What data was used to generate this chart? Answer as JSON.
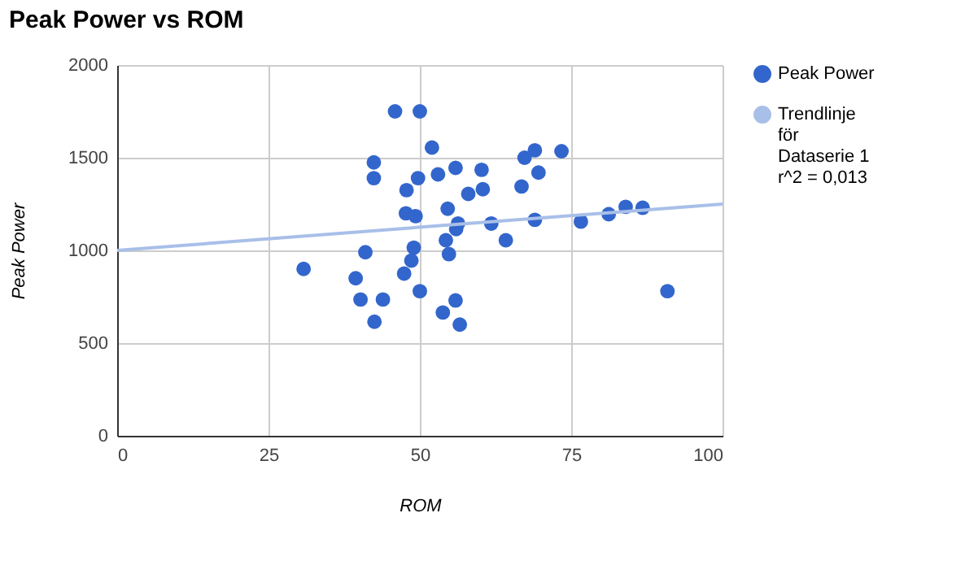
{
  "chart_data": {
    "type": "scatter",
    "title": "Peak Power vs ROM",
    "xlabel": "ROM",
    "ylabel": "Peak Power",
    "xlim": [
      0,
      100
    ],
    "xticks": [
      0,
      25,
      50,
      75,
      100
    ],
    "ylim": [
      0,
      2000
    ],
    "yticks": [
      0,
      500,
      1000,
      1500,
      2000
    ],
    "grid": true,
    "legend": "right",
    "series": [
      {
        "name": "Peak Power",
        "color": "#3366cc",
        "marker": "circle",
        "x": [
          45.9,
          50.0,
          42.4,
          42.4,
          47.8,
          49.7,
          47.7,
          49.3,
          49.0,
          41.0,
          48.6,
          30.8,
          47.4,
          39.4,
          50.0,
          40.2,
          43.9,
          42.5,
          52.0,
          53.0,
          55.9,
          60.2,
          58.0,
          60.4,
          66.8,
          67.3,
          69.0,
          73.4,
          69.6,
          54.6,
          56.3,
          56.0,
          54.3,
          54.8,
          61.8,
          64.2,
          69.0,
          76.6,
          81.2,
          84.0,
          86.8,
          90.9,
          55.9,
          53.8,
          56.6
        ],
        "values": [
          1750,
          1750,
          1475,
          1390,
          1325,
          1390,
          1200,
          1185,
          1015,
          990,
          945,
          900,
          875,
          850,
          780,
          735,
          735,
          615,
          1555,
          1410,
          1445,
          1435,
          1305,
          1330,
          1345,
          1500,
          1540,
          1535,
          1420,
          1225,
          1145,
          1115,
          1055,
          980,
          1145,
          1055,
          1165,
          1155,
          1195,
          1235,
          1230,
          780,
          730,
          665,
          600
        ]
      },
      {
        "name": "Trendlinje för Dataserie 1 r^2 = 0,013",
        "color": "#a8bfe8",
        "type": "line",
        "marker": "none",
        "x": [
          0,
          100
        ],
        "values": [
          1000,
          1250
        ]
      }
    ]
  }
}
